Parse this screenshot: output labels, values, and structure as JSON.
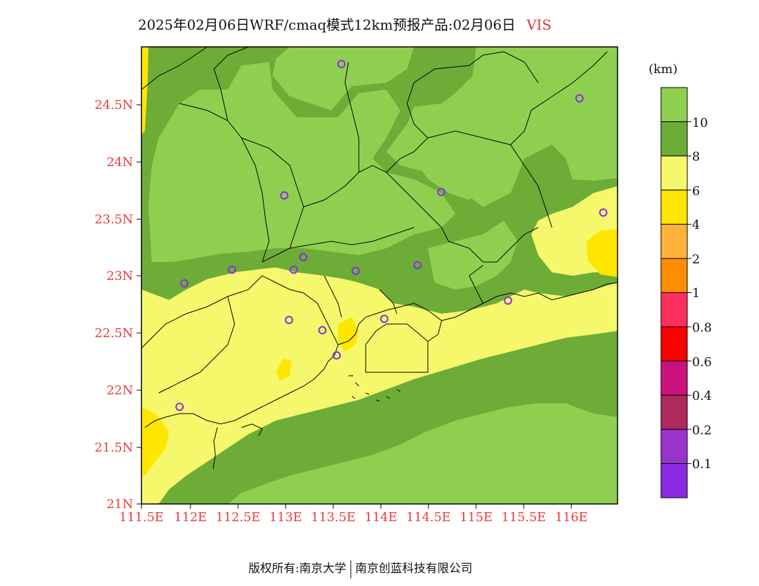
{
  "title": {
    "text": "2025年02月06日WRF/cmaq模式12km预报产品:02月06日",
    "variable": "VIS"
  },
  "colors": {
    "ge10": "#8fcf50",
    "8_10": "#6eac38",
    "6_8": "#f4f86a",
    "4_6": "#ffe600",
    "2_4": "#ffb23a",
    "1_2": "#ff8c00",
    "0.8_1": "#fc2f5d",
    "0.6_0.8": "#ff0000",
    "0.4_0.6": "#cc127e",
    "0.2_0.4": "#ad2a5c",
    "0.1_0.2": "#9a33cc",
    "lt0.1": "#8a2be2",
    "station_marker": "#8a2be2",
    "axis_labels": "#ea3a3a"
  },
  "axes": {
    "lat_ticks": [
      "24.5N",
      "24N",
      "23.5N",
      "23N",
      "22.5N",
      "22N",
      "21.5N",
      "21N"
    ],
    "lon_ticks": [
      "111.5E",
      "112E",
      "112.5E",
      "113E",
      "113.5E",
      "114E",
      "114.5E",
      "115E",
      "115.5E",
      "116E"
    ]
  },
  "legend": {
    "unit": "(km)",
    "labels": [
      "10",
      "8",
      "6",
      "4",
      "2",
      "1",
      "0.8",
      "0.6",
      "0.4",
      "0.2",
      "0.1"
    ]
  },
  "stations": [
    {
      "lon": 113.6,
      "lat": 24.85
    },
    {
      "lon": 116.1,
      "lat": 24.55
    },
    {
      "lon": 113.0,
      "lat": 23.7
    },
    {
      "lon": 114.65,
      "lat": 23.73
    },
    {
      "lon": 116.35,
      "lat": 23.55
    },
    {
      "lon": 113.2,
      "lat": 23.16
    },
    {
      "lon": 112.45,
      "lat": 23.05
    },
    {
      "lon": 113.1,
      "lat": 23.05
    },
    {
      "lon": 113.75,
      "lat": 23.04
    },
    {
      "lon": 114.4,
      "lat": 23.09
    },
    {
      "lon": 111.95,
      "lat": 22.93
    },
    {
      "lon": 115.35,
      "lat": 22.78
    },
    {
      "lon": 113.05,
      "lat": 22.61
    },
    {
      "lon": 114.05,
      "lat": 22.62
    },
    {
      "lon": 113.4,
      "lat": 22.52
    },
    {
      "lon": 113.55,
      "lat": 22.3
    },
    {
      "lon": 111.9,
      "lat": 21.85
    }
  ],
  "footer": {
    "left": "版权所有:南京大学",
    "right": "南京创蓝科技有限公司"
  }
}
